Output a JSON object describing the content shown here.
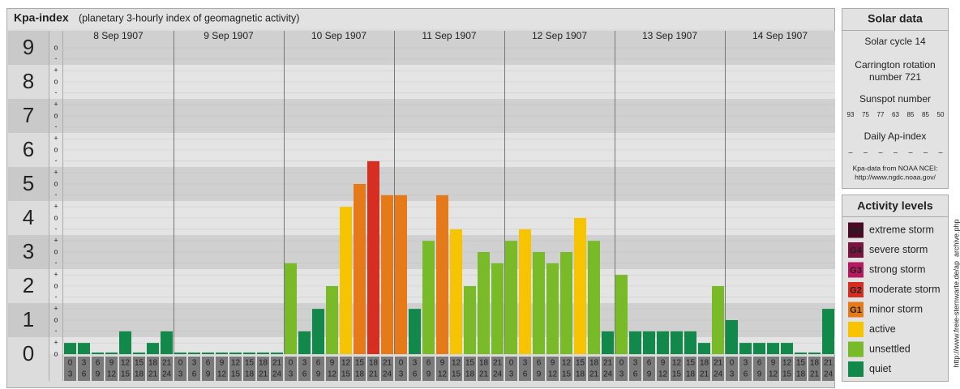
{
  "chart_data": {
    "type": "bar",
    "title": "Kpa-index",
    "subtitle": "(planetary 3-hourly index of geomagnetic activity)",
    "days": [
      "8 Sep 1907",
      "9 Sep 1907",
      "10 Sep 1907",
      "11 Sep 1907",
      "12 Sep 1907",
      "13 Sep 1907",
      "14 Sep 1907"
    ],
    "hour_starts": [
      0,
      3,
      6,
      9,
      12,
      15,
      18,
      21
    ],
    "hour_ends": [
      3,
      6,
      9,
      12,
      15,
      18,
      21,
      24
    ],
    "ylim": [
      0,
      9.5
    ],
    "yticks": [
      0,
      1,
      2,
      3,
      4,
      5,
      6,
      7,
      8,
      9
    ],
    "minor_ticks": [
      {
        "value": 0,
        "label": "o"
      },
      {
        "value": 0.33,
        "label": "+"
      },
      {
        "value": 0.67,
        "label": "-"
      },
      {
        "value": 1,
        "label": "o"
      },
      {
        "value": 1.33,
        "label": "+"
      },
      {
        "value": 1.67,
        "label": "-"
      },
      {
        "value": 2,
        "label": "o"
      },
      {
        "value": 2.33,
        "label": "+"
      },
      {
        "value": 2.67,
        "label": "-"
      },
      {
        "value": 3,
        "label": "o"
      },
      {
        "value": 3.33,
        "label": "+"
      },
      {
        "value": 3.67,
        "label": "-"
      },
      {
        "value": 4,
        "label": "o"
      },
      {
        "value": 4.33,
        "label": "+"
      },
      {
        "value": 4.67,
        "label": "-"
      },
      {
        "value": 5,
        "label": "o"
      },
      {
        "value": 5.33,
        "label": "+"
      },
      {
        "value": 5.67,
        "label": "-"
      },
      {
        "value": 6,
        "label": "o"
      },
      {
        "value": 6.33,
        "label": "+"
      },
      {
        "value": 6.67,
        "label": "-"
      },
      {
        "value": 7,
        "label": "o"
      },
      {
        "value": 7.33,
        "label": "+"
      },
      {
        "value": 7.67,
        "label": "-"
      },
      {
        "value": 8,
        "label": "o"
      },
      {
        "value": 8.33,
        "label": "+"
      },
      {
        "value": 8.67,
        "label": "-"
      },
      {
        "value": 9,
        "label": "o"
      }
    ],
    "values": [
      0.33,
      0.33,
      0,
      0,
      0.67,
      0,
      0.33,
      0.67,
      0,
      0,
      0,
      0,
      0,
      0,
      0,
      0,
      2.67,
      0.67,
      1.33,
      2,
      4.33,
      5,
      5.67,
      4.67,
      4.67,
      1.33,
      3.33,
      4.67,
      3.67,
      2,
      3,
      2.67,
      3.33,
      3.67,
      3,
      2.67,
      3,
      4,
      3.33,
      0.67,
      2.33,
      0.67,
      0.67,
      0.67,
      0.67,
      0.67,
      0.33,
      2,
      1,
      0.33,
      0.33,
      0.33,
      0.33,
      0,
      0,
      1.33
    ],
    "colors": [
      "#12894a",
      "#12894a",
      "#12894a",
      "#12894a",
      "#12894a",
      "#12894a",
      "#12894a",
      "#12894a",
      "#12894a",
      "#12894a",
      "#12894a",
      "#12894a",
      "#12894a",
      "#12894a",
      "#12894a",
      "#12894a",
      "#78ba28",
      "#12894a",
      "#12894a",
      "#78ba28",
      "#f6c400",
      "#e67a18",
      "#d62f22",
      "#e67a18",
      "#e67a18",
      "#12894a",
      "#78ba28",
      "#e67a18",
      "#f6c400",
      "#78ba28",
      "#78ba28",
      "#78ba28",
      "#78ba28",
      "#f6c400",
      "#78ba28",
      "#78ba28",
      "#78ba28",
      "#f6c400",
      "#78ba28",
      "#12894a",
      "#78ba28",
      "#12894a",
      "#12894a",
      "#12894a",
      "#12894a",
      "#12894a",
      "#12894a",
      "#78ba28",
      "#12894a",
      "#12894a",
      "#12894a",
      "#12894a",
      "#12894a",
      "#12894a",
      "#12894a",
      "#12894a"
    ]
  },
  "solar_data": {
    "title": "Solar data",
    "solar_cycle": "Solar cycle 14",
    "carrington": [
      "Carrington rotation",
      "number 721"
    ],
    "sunspot_title": "Sunspot number",
    "sunspot_numbers": [
      93,
      75,
      77,
      63,
      85,
      85,
      50
    ],
    "ap_title": "Daily Ap-index",
    "ap_values": [
      "–",
      "–",
      "–",
      "–",
      "–",
      "–",
      "–"
    ],
    "source": [
      "Kpa-data from NOAA NCEI:",
      "http://www.ngdc.noaa.gov/"
    ]
  },
  "activity_levels": {
    "title": "Activity levels",
    "items": [
      {
        "code": "G5",
        "label": "extreme storm",
        "color": "#4a0a24"
      },
      {
        "code": "G4",
        "label": "severe storm",
        "color": "#7a1242"
      },
      {
        "code": "G3",
        "label": "strong storm",
        "color": "#b8185e"
      },
      {
        "code": "G2",
        "label": "moderate storm",
        "color": "#d62f22"
      },
      {
        "code": "G1",
        "label": "minor storm",
        "color": "#e67a18"
      },
      {
        "label": "active",
        "color": "#f6c400"
      },
      {
        "label": "unsettled",
        "color": "#78ba28"
      },
      {
        "label": "quiet",
        "color": "#12894a"
      }
    ]
  },
  "side_url": "http://www.freie-sternwarte.de/ap_archive.php"
}
